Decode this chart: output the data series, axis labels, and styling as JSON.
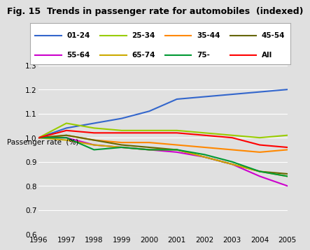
{
  "title": "Fig. 15  Trends in passenger rate for automobiles  (indexed)",
  "ylabel": "Passenger rate  (%)",
  "years": [
    1996,
    1997,
    1998,
    1999,
    2000,
    2001,
    2002,
    2003,
    2004,
    2005
  ],
  "series": [
    {
      "name": "01-24",
      "color": "#3366cc",
      "values": [
        1.0,
        1.04,
        1.06,
        1.08,
        1.11,
        1.16,
        1.17,
        1.18,
        1.19,
        1.2
      ]
    },
    {
      "name": "25-34",
      "color": "#99cc00",
      "values": [
        1.0,
        1.06,
        1.04,
        1.03,
        1.03,
        1.03,
        1.02,
        1.01,
        1.0,
        1.01
      ]
    },
    {
      "name": "35-44",
      "color": "#ff8800",
      "values": [
        1.0,
        1.01,
        0.99,
        0.98,
        0.98,
        0.97,
        0.96,
        0.95,
        0.94,
        0.95
      ]
    },
    {
      "name": "45-54",
      "color": "#666600",
      "values": [
        1.0,
        1.01,
        0.99,
        0.97,
        0.96,
        0.95,
        0.92,
        0.89,
        0.86,
        0.85
      ]
    },
    {
      "name": "55-64",
      "color": "#cc00cc",
      "values": [
        1.0,
        1.0,
        0.97,
        0.96,
        0.95,
        0.94,
        0.92,
        0.89,
        0.84,
        0.8
      ]
    },
    {
      "name": "65-74",
      "color": "#ccaa00",
      "values": [
        1.0,
        0.99,
        0.97,
        0.96,
        0.95,
        0.95,
        0.92,
        0.89,
        0.86,
        0.84
      ]
    },
    {
      "name": "75-",
      "color": "#009933",
      "values": [
        1.0,
        1.0,
        0.95,
        0.96,
        0.95,
        0.95,
        0.93,
        0.9,
        0.86,
        0.84
      ]
    },
    {
      "name": "All",
      "color": "#ff0000",
      "values": [
        1.0,
        1.03,
        1.02,
        1.02,
        1.02,
        1.02,
        1.01,
        1.0,
        0.97,
        0.96
      ]
    }
  ],
  "ylim": [
    0.6,
    1.3
  ],
  "yticks": [
    0.6,
    0.7,
    0.8,
    0.9,
    1.0,
    1.1,
    1.2,
    1.3
  ],
  "bg_color": "#e0e0e0",
  "grid_color": "#ffffff",
  "title_fontsize": 9,
  "axis_fontsize": 7.5,
  "legend_fontsize": 7.5
}
